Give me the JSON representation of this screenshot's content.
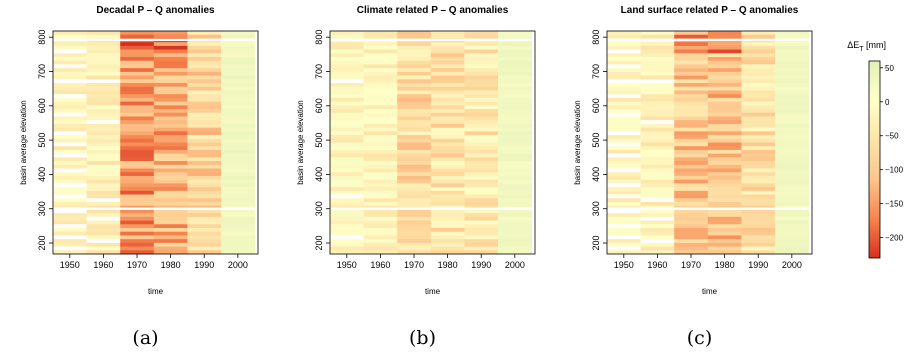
{
  "chart_data": {
    "type": "heatmap",
    "panels": [
      {
        "title": "Decadal P – Q anomalies",
        "subfigure": "(a)",
        "xlabel": "time",
        "ylabel": "basin average elevation",
        "x_ticks": [
          1950,
          1960,
          1970,
          1980,
          1990,
          2000
        ],
        "y_ticks": [
          200,
          300,
          400,
          500,
          600,
          700,
          800
        ],
        "x_range": [
          1945,
          2006
        ],
        "y_range": [
          168,
          818
        ],
        "decades": [
          1950,
          1960,
          1970,
          1980,
          1990,
          2000
        ],
        "band_mean_values": [
          -20,
          -30,
          -150,
          -130,
          -80,
          30
        ]
      },
      {
        "title": "Climate related P – Q anomalies",
        "subfigure": "(b)",
        "xlabel": "time",
        "ylabel": "basin average elevation",
        "x_ticks": [
          1950,
          1960,
          1970,
          1980,
          1990,
          2000
        ],
        "y_ticks": [
          200,
          300,
          400,
          500,
          600,
          700,
          800
        ],
        "x_range": [
          1945,
          2006
        ],
        "y_range": [
          168,
          818
        ],
        "decades": [
          1950,
          1960,
          1970,
          1980,
          1990,
          2000
        ],
        "band_mean_values": [
          -15,
          -20,
          -70,
          -55,
          -40,
          30
        ]
      },
      {
        "title": "Land surface related P – Q anomalies",
        "subfigure": "(c)",
        "xlabel": "time",
        "ylabel": "basin average elevation",
        "x_ticks": [
          1950,
          1960,
          1970,
          1980,
          1990,
          2000
        ],
        "y_ticks": [
          200,
          300,
          400,
          500,
          600,
          700,
          800
        ],
        "x_range": [
          1945,
          2006
        ],
        "y_range": [
          168,
          818
        ],
        "decades": [
          1950,
          1960,
          1970,
          1980,
          1990,
          2000
        ],
        "band_mean_values": [
          -15,
          -25,
          -100,
          -110,
          -60,
          30
        ]
      }
    ],
    "colorbar": {
      "title": "ΔE",
      "title_sub": "T",
      "title_unit": " [mm]",
      "ticks": [
        50,
        0,
        -50,
        -100,
        -150,
        -200
      ],
      "range": [
        -230,
        60
      ],
      "colors": [
        "#d7301f",
        "#f6844e",
        "#fdc58c",
        "#fde4a8",
        "#ffffc8",
        "#e3f0b8"
      ]
    }
  }
}
